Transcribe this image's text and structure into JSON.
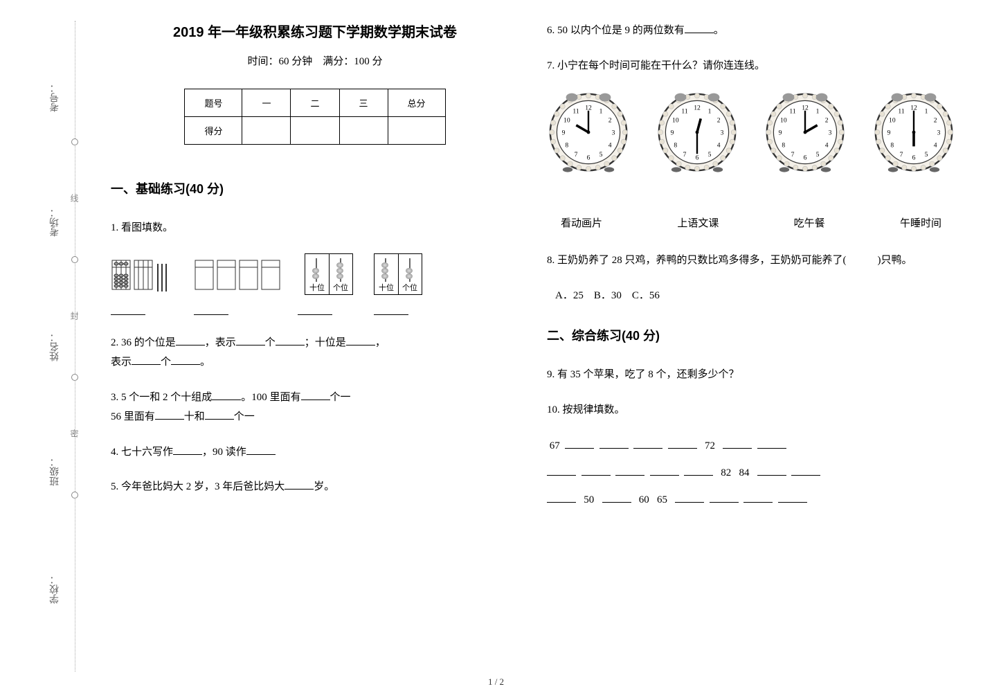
{
  "binding": {
    "labels": [
      "学校：",
      "班级：",
      "姓名：",
      "考场：",
      "考号："
    ],
    "cut_text": "……○……密……○……封……○……线……○……"
  },
  "header": {
    "title": "2019 年一年级积累练习题下学期数学期末试卷",
    "subtitle": "时间：60 分钟　满分：100 分"
  },
  "score_table": {
    "cols": [
      "题号",
      "一",
      "二",
      "三",
      "总分"
    ],
    "row2_first": "得分"
  },
  "section1": {
    "title": "一、基础练习(40 分)",
    "q1": "1. 看图填数。",
    "counter_labels": {
      "tens": "十位",
      "ones": "个位"
    },
    "q2": {
      "pre": "2. 36 的个位是",
      "mid1": "，表示",
      "mid2": "个",
      "mid3": "；十位是",
      "mid4": "，",
      "line2a": "表示",
      "line2b": "个",
      "line2c": "。"
    },
    "q3": {
      "a": "3. 5 个一和 2 个十组成",
      "b": "。100 里面有",
      "c": "个一",
      "line2a": "56 里面有",
      "line2b": "十和",
      "line2c": "个一"
    },
    "q4": {
      "a": "4. 七十六写作",
      "b": "，90 读作"
    },
    "q5": {
      "a": "5. 今年爸比妈大 2 岁，3 年后爸比妈大",
      "b": "岁。"
    }
  },
  "right": {
    "q6": {
      "a": "6. 50 以内个位是 9 的两位数有",
      "b": "。"
    },
    "q7": "7. 小宁在每个时间可能在干什么？请你连连线。",
    "activities": [
      "看动画片",
      "上语文课",
      "吃午餐",
      "午睡时间"
    ],
    "q8": {
      "a": "8. 王奶奶养了 28 只鸡，养鸭的只数比鸡多得多，王奶奶可能养了(",
      "b": ")只鸭。",
      "opts": "A．25　B．30　C．56"
    },
    "section2_title": "二、综合练习(40 分)",
    "q9": "9. 有 35 个苹果，吃了 8 个，还剩多少个？",
    "q10": "10. 按规律填数。",
    "seq1": {
      "start": "67",
      "mid": "72"
    },
    "seq2": {
      "v1": "82",
      "v2": "84"
    },
    "seq3": {
      "v1": "50",
      "v2": "60",
      "v3": "65"
    }
  },
  "clocks": [
    {
      "hour_angle": -60,
      "min_angle": 0
    },
    {
      "hour_angle": 15,
      "min_angle": 180
    },
    {
      "hour_angle": 60,
      "min_angle": 0
    },
    {
      "hour_angle": 180,
      "min_angle": 0
    }
  ],
  "style": {
    "page_bg": "#ffffff",
    "text_color": "#000000",
    "line_color": "#000000",
    "dotted_color": "#aaaaaa",
    "title_fontsize": 20,
    "body_fontsize": 15,
    "section_fontsize": 18
  },
  "pagenum": "1 / 2"
}
